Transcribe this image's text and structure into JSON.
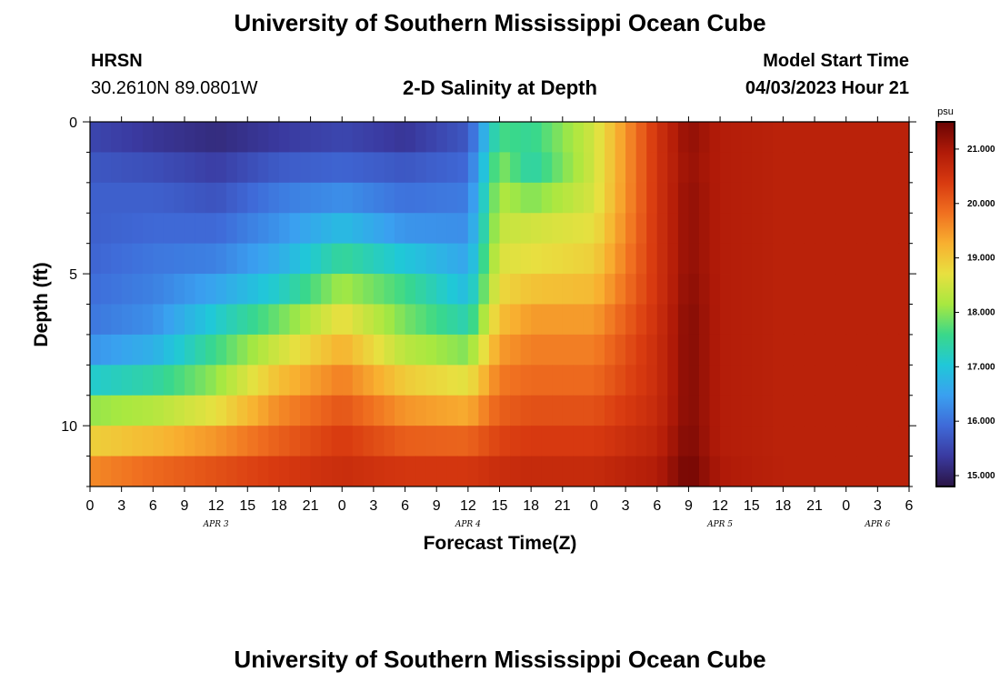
{
  "header": {
    "title": "University of Southern Mississippi Ocean Cube",
    "station": "HRSN",
    "coords": "30.2610N  89.0801W",
    "subtitle": "2-D Salinity at Depth",
    "model_start_label": "Model Start Time",
    "model_start_value": "04/03/2023 Hour 21"
  },
  "footer": {
    "title": "University of Southern Mississippi Ocean Cube"
  },
  "colors": {
    "scale": [
      "#2a1444",
      "#3a3aa0",
      "#3f6ad8",
      "#3aa0f0",
      "#20c8d8",
      "#3ad88a",
      "#a8e840",
      "#e8e040",
      "#f8b030",
      "#f07020",
      "#d83a10",
      "#b01a08",
      "#6a0404"
    ]
  },
  "chart_data": {
    "type": "heatmap",
    "title": "2-D Salinity at Depth",
    "xlabel": "Forecast Time(Z)",
    "ylabel": "Depth (ft)",
    "x_ticks": [
      "0",
      "3",
      "6",
      "9",
      "12",
      "15",
      "18",
      "21",
      "0",
      "3",
      "6",
      "9",
      "12",
      "15",
      "18",
      "21",
      "0",
      "3",
      "6",
      "9",
      "12",
      "15",
      "18",
      "21",
      "0",
      "3",
      "6"
    ],
    "date_labels": [
      {
        "label": "APR 3",
        "hour": 12
      },
      {
        "label": "APR 4",
        "hour": 36
      },
      {
        "label": "APR 5",
        "hour": 60
      },
      {
        "label": "APR 6",
        "hour": 75
      }
    ],
    "xlim": [
      0,
      78
    ],
    "y_ticks": [
      "0",
      "5",
      "10"
    ],
    "ylim": [
      0,
      12
    ],
    "colorbar": {
      "unit": "psu",
      "ticks": [
        "15.000",
        "16.000",
        "17.000",
        "18.000",
        "19.000",
        "20.000",
        "21.000"
      ],
      "range": [
        14.8,
        21.5
      ]
    },
    "depth_levels": [
      0,
      1,
      2,
      3,
      4,
      5,
      6,
      7,
      8,
      9,
      10,
      11,
      12
    ],
    "hours": [
      0,
      6,
      12,
      18,
      24,
      30,
      36,
      39,
      42,
      48,
      54,
      57,
      60,
      66,
      72,
      78
    ],
    "salinity": [
      [
        15.4,
        15.2,
        15.0,
        15.2,
        15.4,
        15.1,
        15.6,
        17.5,
        17.8,
        18.5,
        20.5,
        21.3,
        20.9,
        20.8,
        20.8,
        20.8
      ],
      [
        15.6,
        15.4,
        15.3,
        15.5,
        15.6,
        15.5,
        15.8,
        17.8,
        17.2,
        18.5,
        20.5,
        21.1,
        20.9,
        20.8,
        20.8,
        20.8
      ],
      [
        15.8,
        15.8,
        15.5,
        16.0,
        16.1,
        15.9,
        16.0,
        18.2,
        17.5,
        18.5,
        20.5,
        21.2,
        20.9,
        20.8,
        20.8,
        20.8
      ],
      [
        15.8,
        15.8,
        15.8,
        16.2,
        16.5,
        16.1,
        16.2,
        18.3,
        18.4,
        18.6,
        20.5,
        21.2,
        20.9,
        20.8,
        20.8,
        20.8
      ],
      [
        15.8,
        16.0,
        16.0,
        16.5,
        17.2,
        16.6,
        16.4,
        18.5,
        18.6,
        18.8,
        20.5,
        21.2,
        20.9,
        20.8,
        20.8,
        20.8
      ],
      [
        15.9,
        16.1,
        16.3,
        16.8,
        17.8,
        17.4,
        16.7,
        18.7,
        18.8,
        19.0,
        20.5,
        21.2,
        20.9,
        20.8,
        20.8,
        20.8
      ],
      [
        16.0,
        16.2,
        16.8,
        17.5,
        18.5,
        17.8,
        17.0,
        18.9,
        19.3,
        19.3,
        20.5,
        21.3,
        20.9,
        20.8,
        20.8,
        20.8
      ],
      [
        16.1,
        16.4,
        17.4,
        18.2,
        19.0,
        18.0,
        17.6,
        19.3,
        19.6,
        19.6,
        20.6,
        21.3,
        20.9,
        20.8,
        20.8,
        20.8
      ],
      [
        16.6,
        17.0,
        17.8,
        18.8,
        19.5,
        18.6,
        18.3,
        19.6,
        19.8,
        19.8,
        20.6,
        21.3,
        20.9,
        20.8,
        20.8,
        20.8
      ],
      [
        17.6,
        17.8,
        18.3,
        19.4,
        19.9,
        19.3,
        19.0,
        19.9,
        20.0,
        20.0,
        20.6,
        21.3,
        20.9,
        20.8,
        20.8,
        20.8
      ],
      [
        18.5,
        18.7,
        19.1,
        19.8,
        20.3,
        19.7,
        19.6,
        20.1,
        20.3,
        20.3,
        20.7,
        21.3,
        20.9,
        20.8,
        20.8,
        20.8
      ],
      [
        19.3,
        19.6,
        19.9,
        20.2,
        20.5,
        20.3,
        20.3,
        20.5,
        20.5,
        20.5,
        20.8,
        21.4,
        20.9,
        20.8,
        20.8,
        20.8
      ],
      [
        19.9,
        20.2,
        20.4,
        20.6,
        20.7,
        20.6,
        20.6,
        20.7,
        20.8,
        20.8,
        21.0,
        21.5,
        21.0,
        20.8,
        20.8,
        20.8
      ]
    ]
  }
}
